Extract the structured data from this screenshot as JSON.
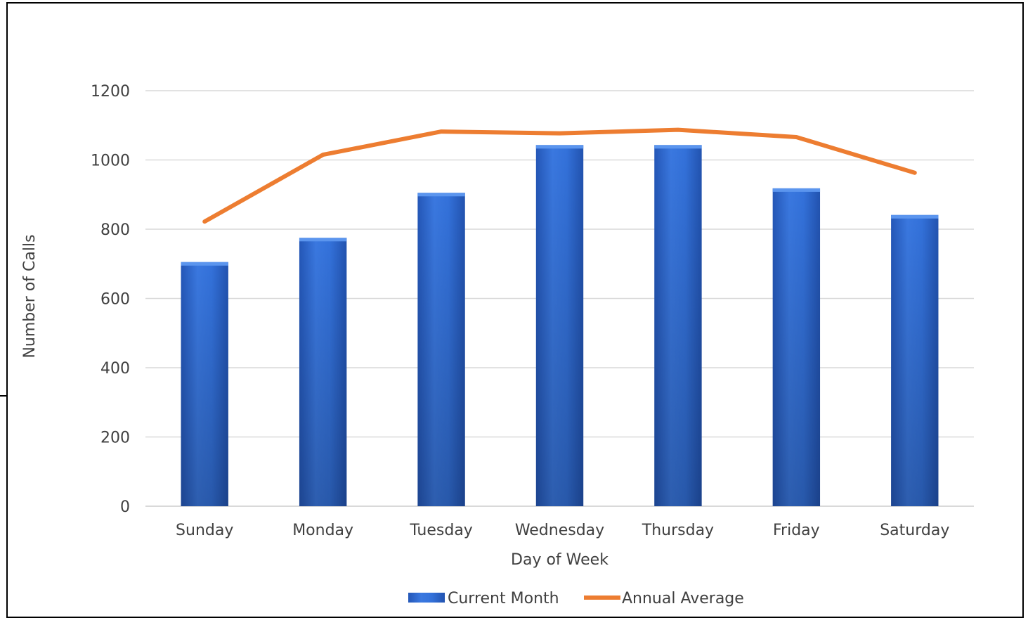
{
  "chart_data": {
    "type": "bar",
    "title": "",
    "xlabel": "Day of Week",
    "ylabel": "Number of Calls",
    "categories": [
      "Sunday",
      "Monday",
      "Tuesday",
      "Wednesday",
      "Thursday",
      "Friday",
      "Saturday"
    ],
    "ylim": [
      0,
      1200
    ],
    "yticks": [
      "0",
      "200",
      "400",
      "600",
      "800",
      "1000",
      "1200"
    ],
    "grid": true,
    "legend_position": "bottom",
    "series": [
      {
        "name": "Current Month",
        "kind": "bar",
        "color": "#2F6FD8",
        "values": [
          705,
          775,
          905,
          1043,
          1043,
          918,
          841
        ]
      },
      {
        "name": "Annual Average",
        "kind": "line",
        "color": "#ED7D31",
        "values": [
          822,
          1015,
          1082,
          1077,
          1087,
          1066,
          963
        ]
      }
    ]
  }
}
